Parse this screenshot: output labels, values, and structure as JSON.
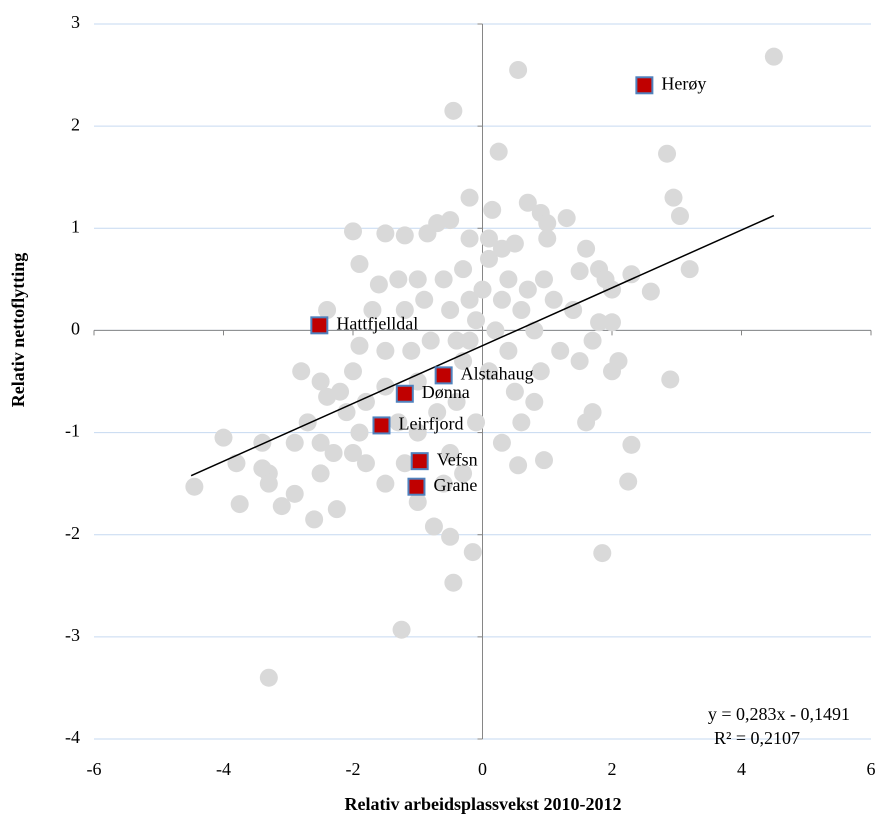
{
  "chart_data": {
    "type": "scatter",
    "xlabel": "Relativ arbeidsplassvekst 2010-2012",
    "ylabel": "Relativ nettoflytting",
    "xlim": [
      -6,
      6
    ],
    "ylim": [
      -4,
      3
    ],
    "xticks": [
      -6,
      -4,
      -2,
      0,
      2,
      4,
      6
    ],
    "yticks": [
      -4,
      -3,
      -2,
      -1,
      0,
      1,
      2,
      3
    ],
    "grid": true,
    "series": [
      {
        "color": "#d9d9d9",
        "x": [
          0.55,
          -0.45,
          4.5,
          2.85,
          0.25,
          2.95,
          3.05,
          3.2,
          2.3,
          2.6,
          0.7,
          0.9,
          1.0,
          1.3,
          1.6,
          1.8,
          1.9,
          2.0,
          1.5,
          1.4,
          1.8,
          2.0,
          1.7,
          1.1,
          0.95,
          0.7,
          -0.2,
          0.15,
          -0.5,
          -0.7,
          -0.85,
          -1.2,
          -1.5,
          -2.0,
          -1.9,
          -1.6,
          -1.3,
          -1.0,
          -0.6,
          -0.3,
          0.1,
          0.3,
          0.5,
          0.4,
          0.0,
          -0.2,
          -0.5,
          -0.9,
          -1.2,
          -1.7,
          -2.4,
          0.3,
          0.6,
          0.8,
          0.2,
          -0.1,
          -0.4,
          -0.8,
          -1.1,
          -1.5,
          -1.9,
          -2.0,
          -2.2,
          -2.5,
          -2.8,
          -2.7,
          -2.5,
          -2.4,
          -2.1,
          -1.8,
          -1.5,
          -1.0,
          -0.3,
          0.1,
          0.5,
          0.8,
          0.9,
          1.2,
          1.5,
          1.6,
          1.7,
          2.0,
          2.1,
          2.9,
          0.6,
          0.3,
          -0.1,
          -0.4,
          -0.7,
          -1.3,
          -1.9,
          -2.3,
          -2.9,
          -3.4,
          -4.0,
          -3.3,
          -3.8,
          -3.4,
          -3.3,
          -2.9,
          -3.1,
          -3.75,
          -4.45,
          -2.6,
          -2.25,
          -1.8,
          -1.5,
          -1.2,
          -0.5,
          -0.3,
          0.55,
          0.95,
          -0.75,
          -0.5,
          -0.15,
          -0.45,
          1.85,
          2.25,
          2.3,
          -1.25,
          -3.3,
          -1.0,
          -0.6,
          1.0,
          -2.5,
          -2.0,
          -1.0,
          -0.2,
          0.4,
          0.1,
          -0.2
        ],
        "values": [
          2.55,
          2.15,
          2.68,
          1.73,
          1.75,
          1.3,
          1.12,
          0.6,
          0.55,
          0.38,
          1.25,
          1.15,
          1.05,
          1.1,
          0.8,
          0.6,
          0.5,
          0.4,
          0.58,
          0.2,
          0.08,
          0.08,
          -0.1,
          0.3,
          0.5,
          0.4,
          1.3,
          1.18,
          1.08,
          1.05,
          0.95,
          0.93,
          0.95,
          0.97,
          0.65,
          0.45,
          0.5,
          0.5,
          0.5,
          0.6,
          0.7,
          0.8,
          0.85,
          0.5,
          0.4,
          0.3,
          0.2,
          0.3,
          0.2,
          0.2,
          0.2,
          0.3,
          0.2,
          0.0,
          0.0,
          0.1,
          -0.1,
          -0.1,
          -0.2,
          -0.2,
          -0.15,
          -0.4,
          -0.6,
          -0.5,
          -0.4,
          -0.9,
          -1.1,
          -0.65,
          -0.8,
          -0.7,
          -0.55,
          -0.5,
          -0.3,
          -0.4,
          -0.6,
          -0.7,
          -0.4,
          -0.2,
          -0.3,
          -0.9,
          -0.8,
          -0.4,
          -0.3,
          -0.48,
          -0.9,
          -1.1,
          -0.9,
          -0.7,
          -0.8,
          -0.9,
          -1.0,
          -1.2,
          -1.1,
          -1.1,
          -1.05,
          -1.4,
          -1.3,
          -1.35,
          -1.5,
          -1.6,
          -1.72,
          -1.7,
          -1.53,
          -1.85,
          -1.75,
          -1.3,
          -1.5,
          -1.3,
          -1.2,
          -1.4,
          -1.32,
          -1.27,
          -1.92,
          -2.02,
          -2.17,
          -2.47,
          -2.18,
          -1.48,
          -1.12,
          -2.93,
          -3.4,
          -1.68,
          -1.5,
          0.9,
          -1.4,
          -1.2,
          -1.0,
          -0.1,
          -0.2,
          0.9,
          0.9
        ]
      },
      {
        "color": "#c00000",
        "labels": [
          "Herøy",
          "Hattfjelldal",
          "Alstahaug",
          "Dønna",
          "Leirfjord",
          "Vefsn",
          "Grane"
        ],
        "x": [
          2.5,
          -2.52,
          -0.6,
          -1.2,
          -1.56,
          -0.97,
          -1.02
        ],
        "values": [
          2.4,
          0.05,
          -0.44,
          -0.62,
          -0.93,
          -1.28,
          -1.53
        ]
      }
    ],
    "trendline": {
      "slope": 0.283,
      "intercept": -0.1491,
      "xrange": [
        -4.5,
        4.5
      ],
      "label": "y = 0,283x - 0,1491",
      "r2_label": "R² = 0,2107"
    }
  }
}
